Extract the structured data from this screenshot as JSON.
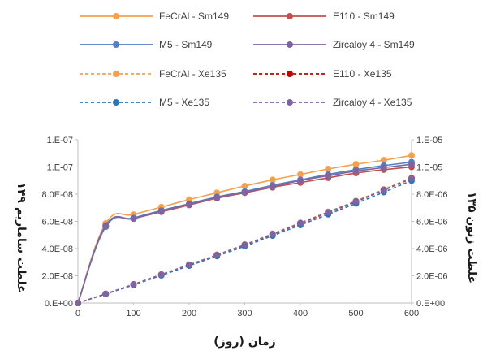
{
  "chart_data": {
    "type": "line",
    "xlabel": "زمان (روز)",
    "ylabel_left": "غلظت ساماریم ۱۴۹",
    "ylabel_right": "غلظت زنون ۱۳۵",
    "x_ticks": [
      "0",
      "100",
      "200",
      "300",
      "400",
      "500",
      "600"
    ],
    "y_left_ticks": [
      "0.E+00",
      "2.0E-08",
      "4.0E-08",
      "6.0E-08",
      "8.0E-08",
      "1.E-07",
      "1.E-07"
    ],
    "y_right_ticks": [
      "0.E+00",
      "2.0E-06",
      "4.0E-06",
      "6.0E-06",
      "8.0E-06",
      "1.E-05",
      "1.E-05"
    ],
    "xlim": [
      0,
      600
    ],
    "ylim_left": [
      0,
      1.2e-07
    ],
    "ylim_right": [
      0,
      1.2e-05
    ],
    "grid": false,
    "legend_position": "top",
    "x": [
      0,
      50,
      100,
      150,
      200,
      250,
      300,
      350,
      400,
      450,
      500,
      550,
      600
    ],
    "series": [
      {
        "name": "FeCrAl - Sm149",
        "axis": "left",
        "style": "solid",
        "color": "#f4a14f",
        "values": [
          0,
          5.85e-08,
          6.5e-08,
          7.05e-08,
          7.6e-08,
          8.1e-08,
          8.6e-08,
          9.05e-08,
          9.45e-08,
          9.85e-08,
          1.02e-07,
          1.05e-07,
          1.085e-07
        ]
      },
      {
        "name": "E110 - Sm149",
        "axis": "left",
        "style": "solid",
        "color": "#c0504d",
        "values": [
          0,
          5.65e-08,
          6.2e-08,
          6.7e-08,
          7.2e-08,
          7.7e-08,
          8.1e-08,
          8.5e-08,
          8.85e-08,
          9.2e-08,
          9.55e-08,
          9.8e-08,
          1e-07
        ]
      },
      {
        "name": "M5 - Sm149",
        "axis": "left",
        "style": "solid",
        "color": "#4f81bd",
        "values": [
          0,
          5.6e-08,
          6.25e-08,
          6.8e-08,
          7.3e-08,
          7.8e-08,
          8.2e-08,
          8.65e-08,
          9.05e-08,
          9.45e-08,
          9.8e-08,
          1.01e-07,
          1.035e-07
        ]
      },
      {
        "name": "Zircaloy 4 - Sm149",
        "axis": "left",
        "style": "solid",
        "color": "#8064a2",
        "values": [
          0,
          5.7e-08,
          6.2e-08,
          6.75e-08,
          7.25e-08,
          7.75e-08,
          8.15e-08,
          8.55e-08,
          9e-08,
          9.35e-08,
          9.7e-08,
          9.95e-08,
          1.02e-07
        ]
      },
      {
        "name": "FeCrAl - Xe135",
        "axis": "right",
        "style": "dashed",
        "color": "#f4a14f",
        "values": [
          0,
          6.8e-07,
          1.38e-06,
          2.1e-06,
          2.82e-06,
          3.55e-06,
          4.3e-06,
          5.1e-06,
          5.9e-06,
          6.7e-06,
          7.5e-06,
          8.35e-06,
          9.2e-06
        ]
      },
      {
        "name": "E110 - Xe135",
        "axis": "right",
        "style": "dashed",
        "color": "#c00000",
        "values": [
          0,
          6.7e-07,
          1.36e-06,
          2.08e-06,
          2.8e-06,
          3.52e-06,
          4.27e-06,
          5.05e-06,
          5.85e-06,
          6.65e-06,
          7.45e-06,
          8.3e-06,
          9.15e-06
        ]
      },
      {
        "name": "M5 - Xe135",
        "axis": "right",
        "style": "dashed",
        "color": "#2e75b6",
        "values": [
          0,
          6.6e-07,
          1.33e-06,
          2.03e-06,
          2.74e-06,
          3.45e-06,
          4.18e-06,
          4.95e-06,
          5.73e-06,
          6.52e-06,
          7.32e-06,
          8.15e-06,
          9e-06
        ]
      },
      {
        "name": "Zircaloy 4 - Xe135",
        "axis": "right",
        "style": "dashed",
        "color": "#8064a2",
        "values": [
          0,
          6.75e-07,
          1.37e-06,
          2.09e-06,
          2.81e-06,
          3.53e-06,
          4.28e-06,
          5.07e-06,
          5.87e-06,
          6.68e-06,
          7.48e-06,
          8.32e-06,
          9.17e-06
        ]
      }
    ]
  }
}
